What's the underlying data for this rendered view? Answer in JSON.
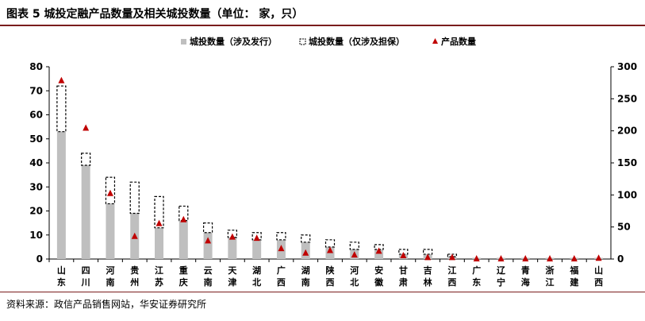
{
  "title": "图表 5  城投定融产品数量及相关城投数量（单位： 家，只）",
  "source": "资料来源：政信产品销售网站，华安证券研究所",
  "chart_data": {
    "type": "bar",
    "title": "图表 5  城投定融产品数量及相关城投数量（单位： 家，只）",
    "categories": [
      "山东",
      "四川",
      "河南",
      "贵州",
      "江苏",
      "重庆",
      "云南",
      "天津",
      "湖北",
      "广西",
      "湖南",
      "陕西",
      "河北",
      "安徽",
      "甘肃",
      "吉林",
      "江西",
      "广东",
      "辽宁",
      "青海",
      "浙江",
      "福建",
      "山西"
    ],
    "series": [
      {
        "name": "城投数量（涉及发行）",
        "axis": "left",
        "style": "bar",
        "color": "#bfbfbf",
        "values": [
          53,
          39,
          23,
          19,
          13,
          16,
          11,
          9,
          8,
          8,
          7,
          5,
          4,
          4,
          2,
          2,
          1,
          0.5,
          0.5,
          0.5,
          0.5,
          0.5,
          0.5
        ]
      },
      {
        "name": "城投数量（仅涉及担保）",
        "axis": "left",
        "style": "stacked-dashed-bar",
        "color": "#000000",
        "values": [
          19,
          5,
          11,
          13,
          13,
          6,
          4,
          3,
          3,
          3,
          3,
          3,
          3,
          2,
          2,
          2,
          1,
          0,
          0,
          0,
          0,
          0,
          0
        ]
      },
      {
        "name": "产品数量",
        "axis": "right",
        "style": "marker",
        "color": "#c00000",
        "values": [
          278,
          204,
          102,
          35,
          55,
          61,
          28,
          34,
          32,
          16,
          9,
          13,
          6,
          12,
          5,
          2,
          2,
          0,
          0,
          0,
          0,
          0,
          1
        ]
      }
    ],
    "yleft": {
      "ylim": [
        0,
        80
      ],
      "ticks": [
        0,
        10,
        20,
        30,
        40,
        50,
        60,
        70,
        80
      ]
    },
    "yright": {
      "ylim": [
        0,
        300
      ],
      "ticks": [
        0,
        50,
        100,
        150,
        200,
        250,
        300
      ]
    },
    "legend_position": "top-center",
    "grid": false
  }
}
